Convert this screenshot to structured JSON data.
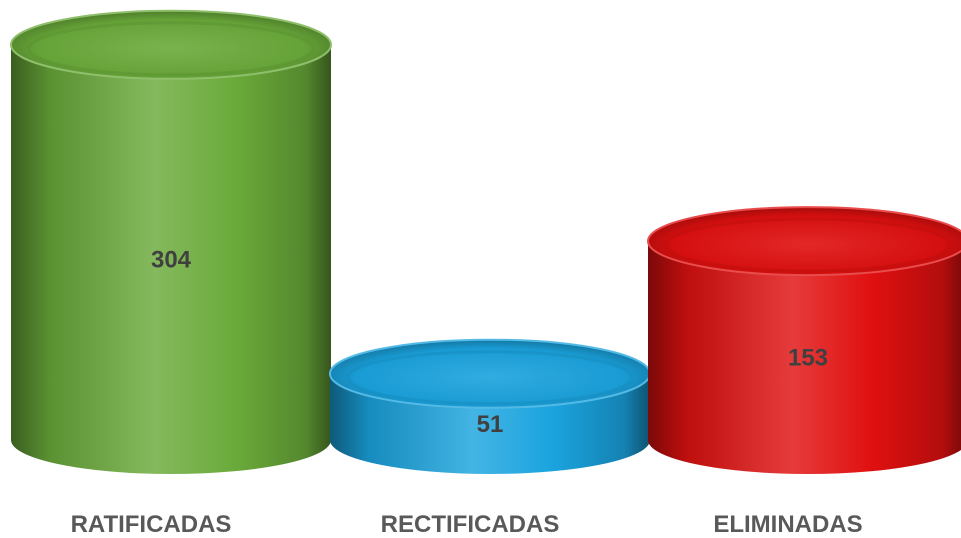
{
  "chart_data": {
    "type": "bar",
    "style": "3d-cylinder",
    "categories": [
      "RATIFICADAS",
      "RECTIFICADAS",
      "ELIMINADAS"
    ],
    "values": [
      304,
      51,
      153
    ],
    "colors": [
      "#6aaa3a",
      "#1aa3de",
      "#e01010"
    ],
    "title": "",
    "xlabel": "",
    "ylabel": "",
    "grid": false,
    "legend": "none"
  }
}
